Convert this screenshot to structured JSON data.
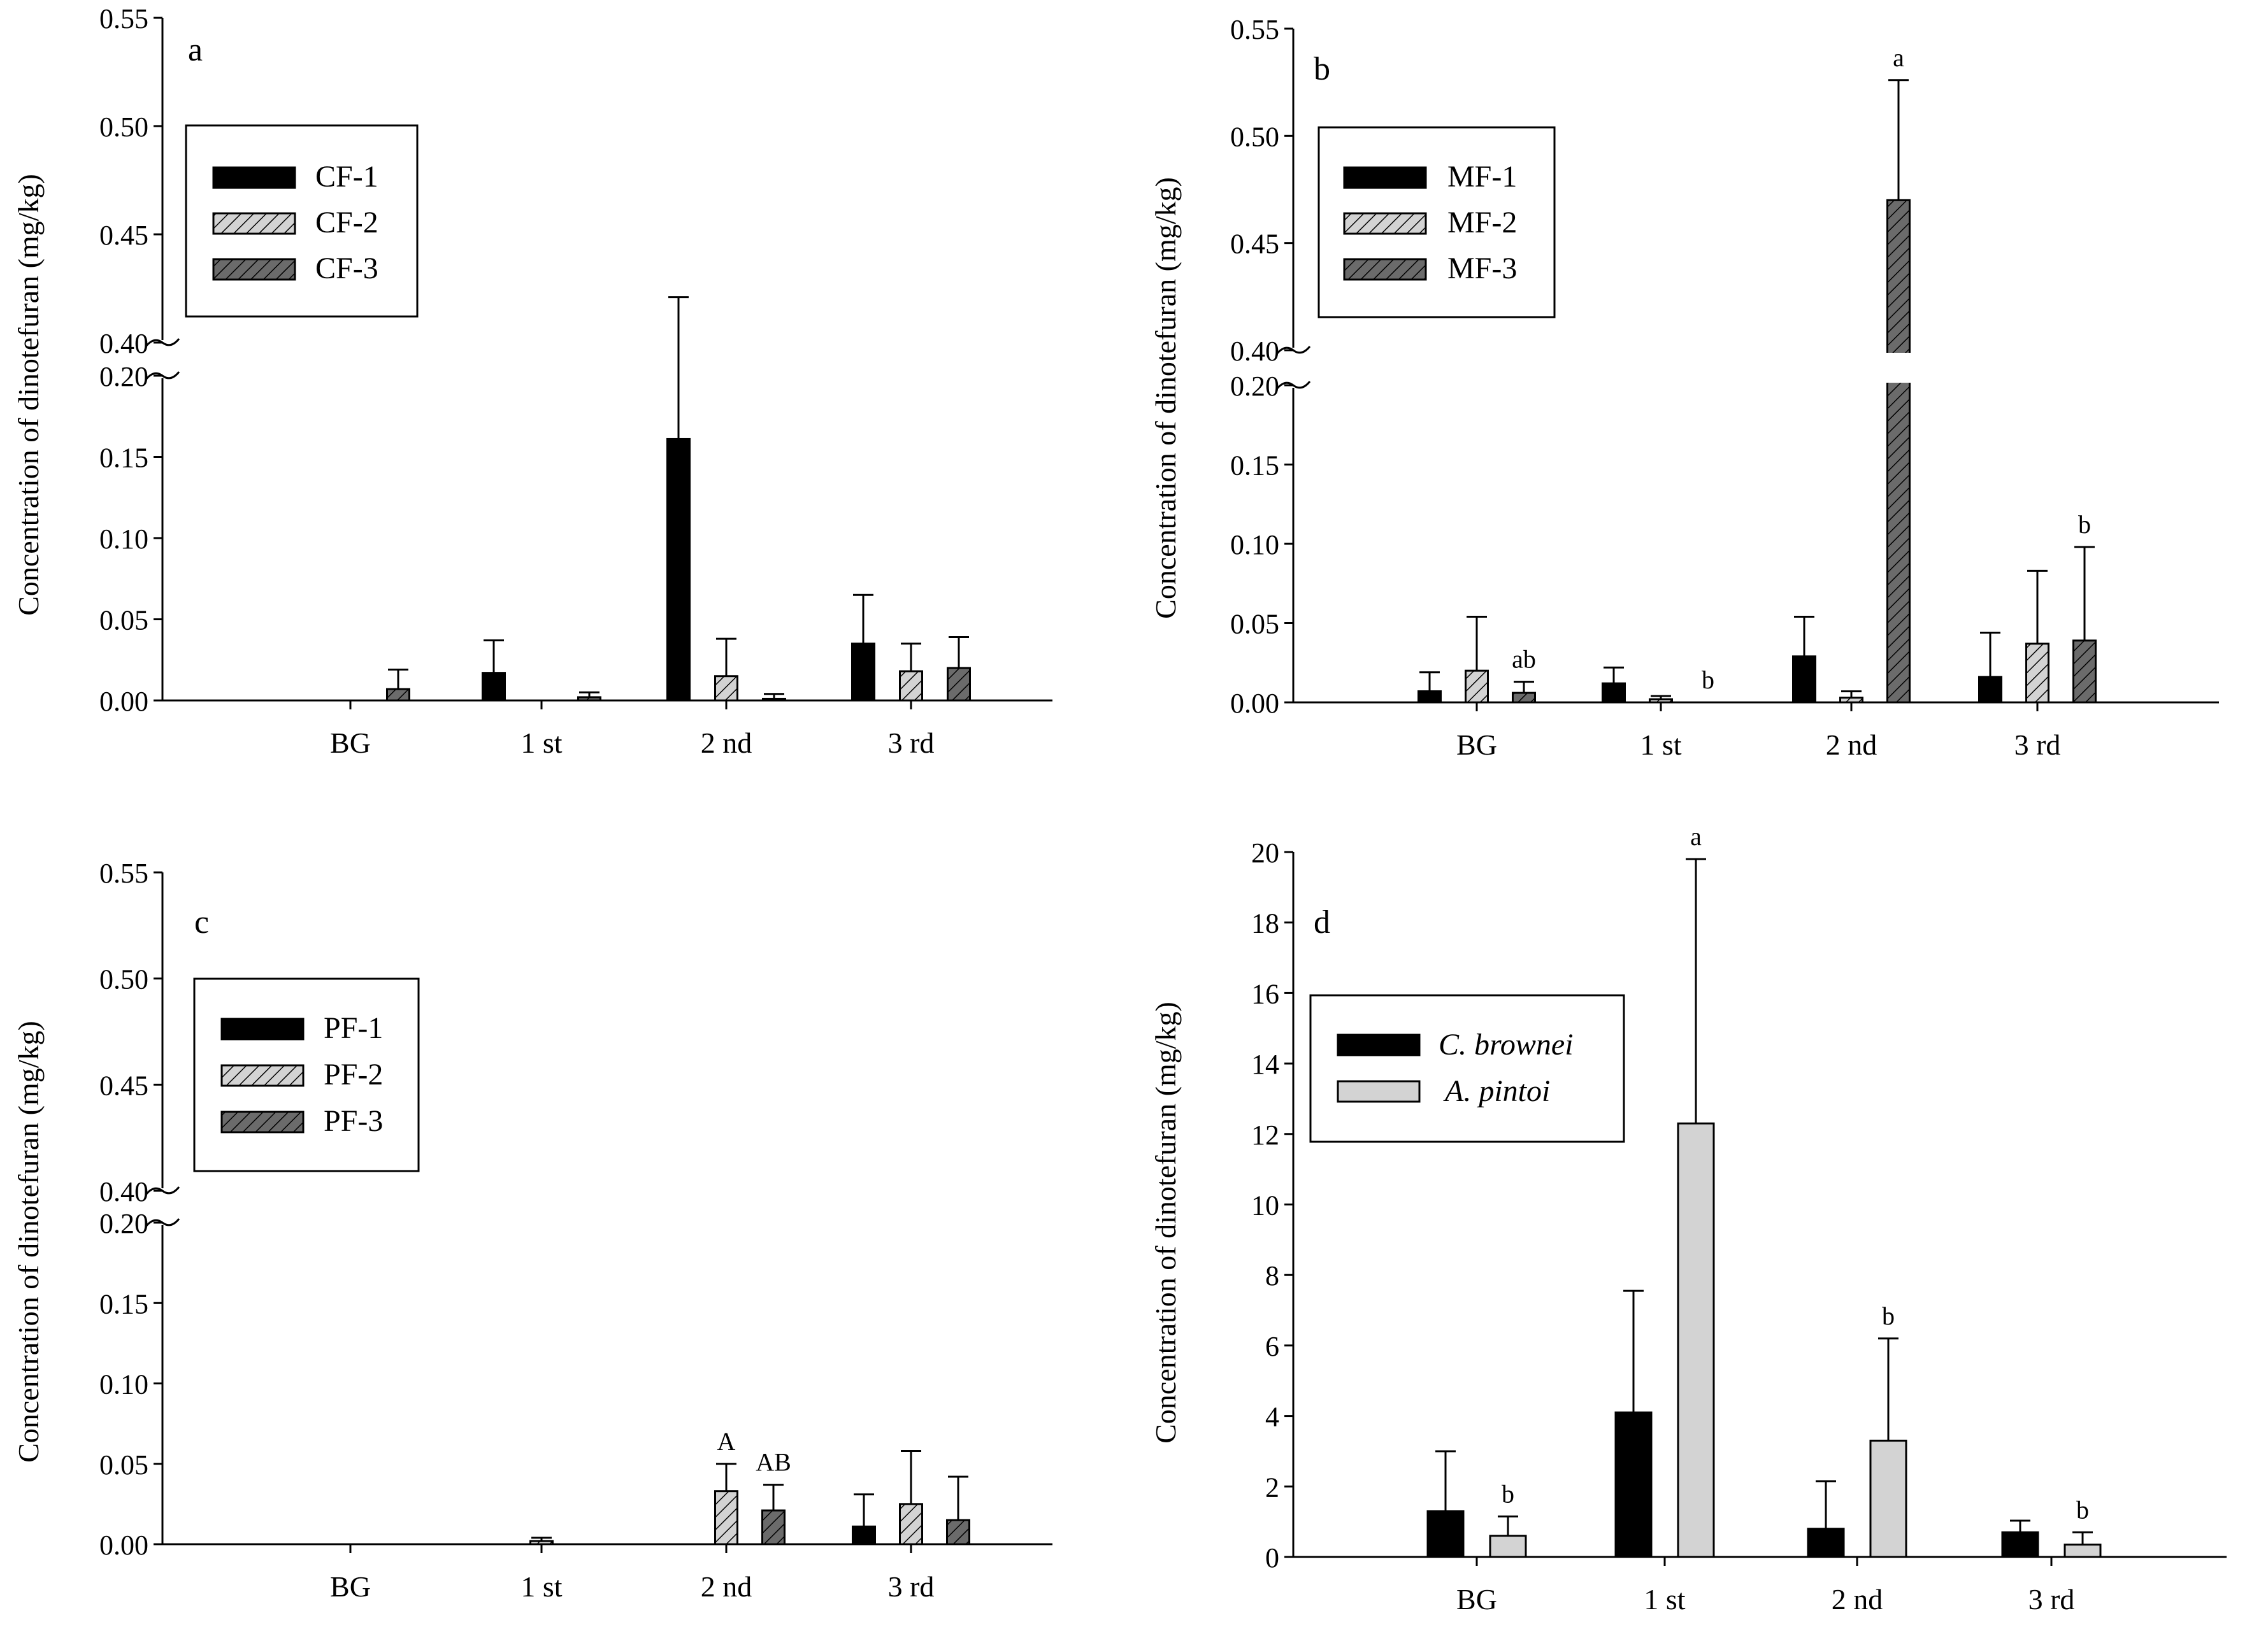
{
  "colors": {
    "black": "#000000",
    "light": "#d3d3d3",
    "dark": "#6b6b6b",
    "white": "#ffffff"
  },
  "chart_data": [
    {
      "panel": "a",
      "type": "bar",
      "broken_axis": true,
      "ylabel": "Concentration of dinotefuran (mg/kg)",
      "categories": [
        "BG",
        "1 st",
        "2 nd",
        "3 rd"
      ],
      "lower_ticks": [
        "0.00",
        "0.05",
        "0.10",
        "0.15",
        "0.20"
      ],
      "upper_ticks": [
        "0.40",
        "0.45",
        "0.50",
        "0.55"
      ],
      "lower_range": [
        0,
        0.2
      ],
      "upper_range": [
        0.4,
        0.55
      ],
      "legend_position": "top-left",
      "series": [
        {
          "name": "CF-1",
          "style": "black",
          "values": [
            0,
            0.017,
            0.161,
            0.035
          ],
          "errors": [
            0,
            0.02,
            0.26,
            0.03
          ],
          "labels": [
            "",
            "",
            "",
            ""
          ]
        },
        {
          "name": "CF-2",
          "style": "light",
          "values": [
            0,
            0,
            0.015,
            0.018
          ],
          "errors": [
            0,
            0,
            0.023,
            0.017
          ],
          "labels": [
            "",
            "",
            "",
            ""
          ]
        },
        {
          "name": "CF-3",
          "style": "dark",
          "values": [
            0.007,
            0.002,
            0.001,
            0.02
          ],
          "errors": [
            0.012,
            0.003,
            0.003,
            0.019
          ],
          "labels": [
            "",
            "",
            "",
            ""
          ]
        }
      ]
    },
    {
      "panel": "b",
      "type": "bar",
      "broken_axis": true,
      "ylabel": "Concentration of dinotefuran (mg/kg)",
      "categories": [
        "BG",
        "1 st",
        "2 nd",
        "3 rd"
      ],
      "lower_ticks": [
        "0.00",
        "0.05",
        "0.10",
        "0.15",
        "0.20"
      ],
      "upper_ticks": [
        "0.40",
        "0.45",
        "0.50",
        "0.55"
      ],
      "lower_range": [
        0,
        0.2
      ],
      "upper_range": [
        0.4,
        0.55
      ],
      "legend_position": "top-left",
      "series": [
        {
          "name": "MF-1",
          "style": "black",
          "values": [
            0.007,
            0.012,
            0.029,
            0.016
          ],
          "errors": [
            0.012,
            0.01,
            0.025,
            0.028
          ],
          "labels": [
            "",
            "",
            "",
            ""
          ]
        },
        {
          "name": "MF-2",
          "style": "light",
          "values": [
            0.02,
            0.002,
            0.003,
            0.037
          ],
          "errors": [
            0.034,
            0.002,
            0.004,
            0.046
          ],
          "labels": [
            "",
            "",
            "",
            ""
          ]
        },
        {
          "name": "MF-3",
          "style": "dark",
          "values": [
            0.006,
            0,
            0.47,
            0.039
          ],
          "errors": [
            0.007,
            0,
            0.056,
            0.059
          ],
          "labels": [
            "ab",
            "b",
            "a",
            "b"
          ]
        }
      ]
    },
    {
      "panel": "c",
      "type": "bar",
      "broken_axis": true,
      "ylabel": "Concentration of dinotefuran (mg/kg)",
      "categories": [
        "BG",
        "1 st",
        "2 nd",
        "3 rd"
      ],
      "lower_ticks": [
        "0.00",
        "0.05",
        "0.10",
        "0.15",
        "0.20"
      ],
      "upper_ticks": [
        "0.40",
        "0.45",
        "0.50",
        "0.55"
      ],
      "lower_range": [
        0,
        0.2
      ],
      "upper_range": [
        0.4,
        0.55
      ],
      "legend_position": "top-left",
      "series": [
        {
          "name": "PF-1",
          "style": "black",
          "values": [
            0,
            0,
            0,
            0.011
          ],
          "errors": [
            0,
            0,
            0,
            0.02
          ],
          "labels": [
            "",
            "",
            "",
            ""
          ]
        },
        {
          "name": "PF-2",
          "style": "light",
          "values": [
            0,
            0.002,
            0.033,
            0.025
          ],
          "errors": [
            0,
            0.002,
            0.017,
            0.033
          ],
          "labels": [
            "",
            "",
            "A",
            ""
          ]
        },
        {
          "name": "PF-3",
          "style": "dark",
          "values": [
            0,
            0,
            0.021,
            0.015
          ],
          "errors": [
            0,
            0,
            0.016,
            0.027
          ],
          "labels": [
            "",
            "",
            "AB",
            ""
          ]
        }
      ]
    },
    {
      "panel": "d",
      "type": "bar",
      "broken_axis": false,
      "ylabel": "Concentration of dinotefuran (mg/kg)",
      "categories": [
        "BG",
        "1 st",
        "2 nd",
        "3 rd"
      ],
      "ticks": [
        "0",
        "2",
        "4",
        "6",
        "8",
        "10",
        "12",
        "14",
        "16",
        "18",
        "20"
      ],
      "ylim": [
        0,
        20
      ],
      "legend_position": "top-left",
      "series": [
        {
          "name": "C. brownei",
          "style": "black",
          "values": [
            1.3,
            4.1,
            0.8,
            0.7
          ],
          "errors": [
            1.7,
            3.45,
            1.35,
            0.33
          ],
          "labels": [
            "",
            "",
            "",
            ""
          ]
        },
        {
          "name": "A. pintoi",
          "style": "plain",
          "values": [
            0.6,
            12.3,
            3.3,
            0.35
          ],
          "errors": [
            0.55,
            7.5,
            2.9,
            0.35
          ],
          "labels": [
            "b",
            "a",
            "b",
            "b"
          ]
        }
      ]
    }
  ]
}
